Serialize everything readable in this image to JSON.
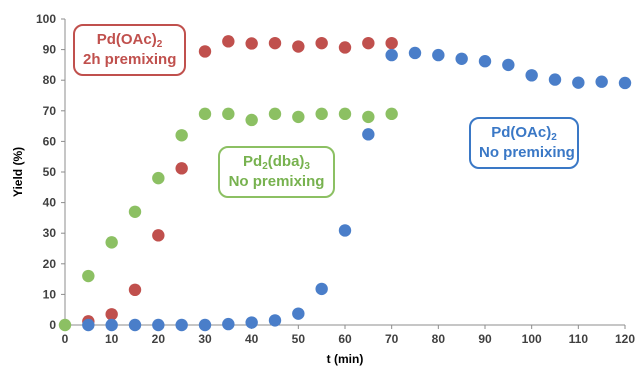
{
  "chart_data": {
    "type": "scatter",
    "xlabel": "t (min)",
    "ylabel": "Yield (%)",
    "xlim": [
      0,
      120
    ],
    "ylim": [
      0,
      100
    ],
    "xticks": [
      "0",
      "10",
      "20",
      "30",
      "40",
      "50",
      "60",
      "70",
      "80",
      "90",
      "100",
      "110",
      "120"
    ],
    "yticks": [
      "0",
      "10",
      "20",
      "30",
      "40",
      "50",
      "60",
      "70",
      "80",
      "90",
      "100"
    ],
    "grid": false,
    "series": [
      {
        "name": "Pd(OAc)2 2h premixing",
        "color": "#c0504d",
        "x": [
          5,
          10,
          15,
          20,
          25,
          30,
          35,
          40,
          45,
          50,
          55,
          60,
          65,
          70
        ],
        "y": [
          1.2,
          3.5,
          11.5,
          29.3,
          51.2,
          89.4,
          92.7,
          92.0,
          92.1,
          91.0,
          92.1,
          90.7,
          92.1,
          92.1
        ]
      },
      {
        "name": "Pd2(dba)3 No premixing",
        "color": "#8cc063",
        "x": [
          0,
          5,
          10,
          15,
          20,
          25,
          30,
          35,
          40,
          45,
          50,
          55,
          60,
          65,
          70
        ],
        "y": [
          0,
          16,
          27,
          37,
          48,
          62,
          69,
          69,
          67,
          69,
          68,
          69,
          69,
          68,
          69
        ]
      },
      {
        "name": "Pd(OAc)2 No premixing",
        "color": "#4a7ec9",
        "x": [
          5,
          10,
          15,
          20,
          25,
          30,
          35,
          40,
          45,
          50,
          55,
          60,
          65,
          70,
          75,
          80,
          85,
          90,
          95,
          100,
          105,
          110,
          115,
          120
        ],
        "y": [
          0,
          0,
          0,
          0,
          0,
          0,
          0.3,
          0.8,
          1.5,
          3.7,
          11.8,
          30.9,
          62.3,
          88.2,
          88.9,
          88.2,
          87.0,
          86.2,
          85.0,
          81.6,
          80.2,
          79.2,
          79.5,
          79.1
        ]
      }
    ],
    "annotations": [
      {
        "id": "red",
        "lines": [
          [
            "Pd(OAc)",
            "2",
            ""
          ],
          [
            "2h premixing",
            "",
            ""
          ]
        ]
      },
      {
        "id": "green",
        "lines": [
          [
            "Pd",
            "2",
            "(dba)",
            "3"
          ],
          [
            "No premixing",
            "",
            ""
          ]
        ]
      },
      {
        "id": "blue",
        "lines": [
          [
            "Pd(OAc)",
            "2",
            ""
          ],
          [
            "No premixing",
            "",
            ""
          ]
        ]
      }
    ]
  },
  "labels": {
    "red": {
      "l1_main": "Pd(OAc)",
      "l1_sub": "2",
      "l2": "2h premixing"
    },
    "green": {
      "l1_a": "Pd",
      "l1_sub1": "2",
      "l1_b": "(dba)",
      "l1_sub2": "3",
      "l2": "No premixing"
    },
    "blue": {
      "l1_main": "Pd(OAc)",
      "l1_sub": "2",
      "l2": "No premixing"
    }
  }
}
